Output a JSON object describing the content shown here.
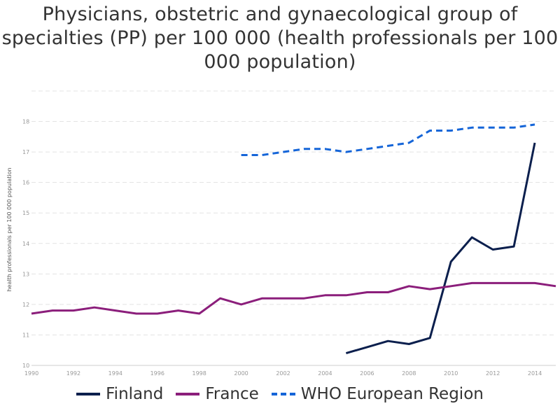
{
  "chart_data": {
    "type": "line",
    "title": "Physicians, obstetric and gynaecological group of specialties (PP) per 100 000 (health professionals per 100 000 population)",
    "ylabel": "health professionals per 100 000 population",
    "xlabel": "",
    "xlim": [
      1990,
      2015
    ],
    "ylim": [
      10,
      19
    ],
    "x_ticks": [
      1990,
      1992,
      1994,
      1996,
      1998,
      2000,
      2002,
      2004,
      2006,
      2008,
      2010,
      2012,
      2014
    ],
    "y_ticks": [
      10,
      11,
      12,
      13,
      14,
      15,
      16,
      17,
      18
    ],
    "grid": "horizontal dashed",
    "legend_position": "bottom",
    "series": [
      {
        "name": "Finland",
        "color": "#0b1f4d",
        "dash": "solid",
        "x": [
          2005,
          2006,
          2007,
          2008,
          2009,
          2010,
          2011,
          2012,
          2013,
          2014
        ],
        "values": [
          10.4,
          10.6,
          10.8,
          10.7,
          10.9,
          13.4,
          14.2,
          13.8,
          13.9,
          17.3
        ]
      },
      {
        "name": "France",
        "color": "#8b1e7b",
        "dash": "solid",
        "x": [
          1990,
          1991,
          1992,
          1993,
          1994,
          1995,
          1996,
          1997,
          1998,
          1999,
          2000,
          2001,
          2002,
          2003,
          2004,
          2005,
          2006,
          2007,
          2008,
          2009,
          2010,
          2011,
          2012,
          2013,
          2014,
          2015
        ],
        "values": [
          11.7,
          11.8,
          11.8,
          11.9,
          11.8,
          11.7,
          11.7,
          11.8,
          11.7,
          12.2,
          12.0,
          12.2,
          12.2,
          12.2,
          12.3,
          12.3,
          12.4,
          12.4,
          12.6,
          12.5,
          12.6,
          12.7,
          12.7,
          12.7,
          12.7,
          12.6
        ]
      },
      {
        "name": "WHO European Region",
        "color": "#1565d8",
        "dash": "dashed",
        "x": [
          2000,
          2001,
          2002,
          2003,
          2004,
          2005,
          2006,
          2007,
          2008,
          2009,
          2010,
          2011,
          2012,
          2013,
          2014
        ],
        "values": [
          16.9,
          16.9,
          17.0,
          17.1,
          17.1,
          17.0,
          17.1,
          17.2,
          17.3,
          17.7,
          17.7,
          17.8,
          17.8,
          17.8,
          17.9
        ]
      }
    ]
  }
}
